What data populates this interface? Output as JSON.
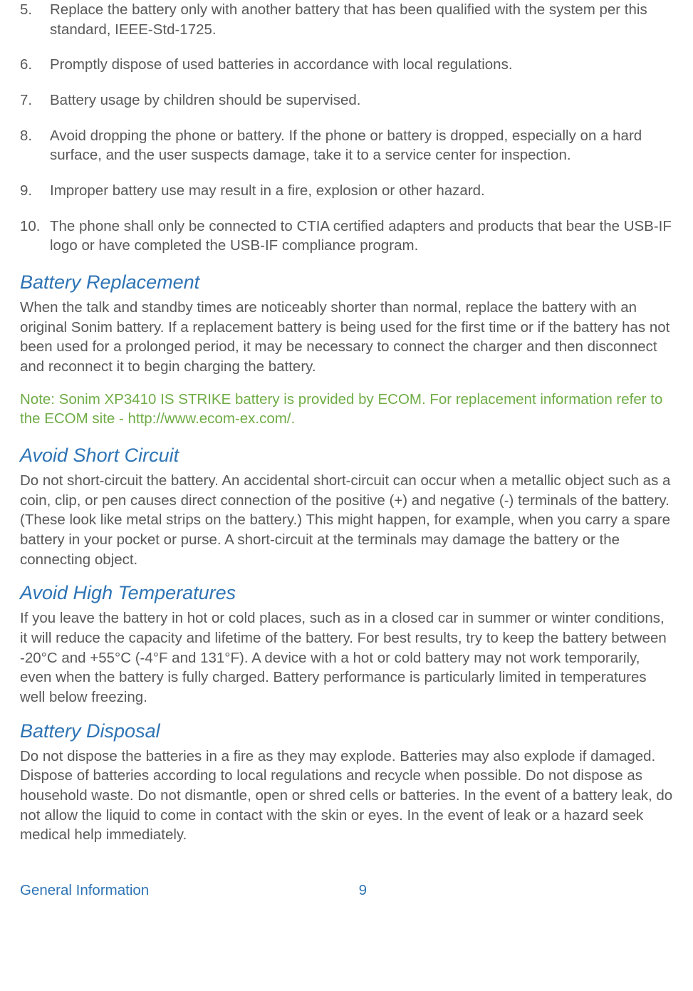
{
  "list": [
    {
      "num": "5.",
      "text": "Replace the battery only with another battery that has been qualified with the system per this standard, IEEE-Std-1725."
    },
    {
      "num": "6.",
      "text": "Promptly dispose of used batteries in accordance with local regulations."
    },
    {
      "num": "7.",
      "text": "Battery usage by children should be supervised."
    },
    {
      "num": "8.",
      "text": "Avoid dropping the phone or battery. If the phone or battery is dropped, especially on a hard surface, and the user suspects damage, take it to a service center for inspection."
    },
    {
      "num": "9.",
      "text": "Improper battery use may result in a fire, explosion or other hazard."
    },
    {
      "num": "10.",
      "text": "The phone shall only be connected to CTIA certified adapters and products that bear the USB-IF logo or have completed the USB-IF compliance program."
    }
  ],
  "sections": {
    "battery_replacement": {
      "heading": "Battery Replacement",
      "body": "When the talk and standby times are noticeably shorter than normal, replace the battery with an original Sonim battery. If a replacement battery is being used for the first time or if the battery has not been used for a prolonged period, it may be necessary to connect the charger and then disconnect and reconnect it to begin charging the battery.",
      "note": "Note: Sonim XP3410 IS STRIKE battery is provided by ECOM. For replacement information refer to the ECOM site - http://www.ecom-ex.com/."
    },
    "avoid_short_circuit": {
      "heading": "Avoid Short Circuit",
      "body": "Do not short-circuit the battery. An accidental short-circuit can occur when a metallic object such as a coin, clip, or pen causes direct connection of the positive (+) and negative (-) terminals of the battery. (These look like metal strips on the battery.) This might happen, for example, when you carry a spare battery in your pocket or purse. A short-circuit at the terminals may damage the battery or the connecting object."
    },
    "avoid_high_temperatures": {
      "heading": "Avoid High Temperatures",
      "body": "If you leave the battery in hot or cold places, such as in a closed car in summer or winter conditions, it will reduce the capacity and lifetime of the battery. For best results, try to keep the battery between -20°C and +55°C (-4°F and 131°F). A device with a hot or cold battery may not work temporarily, even when the battery is fully charged. Battery performance is particularly limited in temperatures well below freezing."
    },
    "battery_disposal": {
      "heading": "Battery Disposal",
      "body": "Do not dispose the batteries in a fire as they may explode. Batteries may also explode if damaged. Dispose of batteries according to local regulations and recycle when possible. Do not dispose as household waste. Do not dismantle, open or shred cells or batteries. In the event of a battery leak, do not allow the liquid to come in contact with the skin or eyes. In the event of leak or a hazard seek medical help immediately."
    }
  },
  "footer": {
    "section_label": "General Information",
    "page_number": "9"
  },
  "colors": {
    "heading_color": "#2e74b5",
    "body_color": "#595959",
    "note_color": "#6fac46",
    "footer_color": "#2e74b5",
    "background_color": "#ffffff"
  },
  "typography": {
    "body_fontsize": 20.5,
    "heading_fontsize": 27,
    "heading_style": "italic",
    "font_family": "Arial"
  }
}
